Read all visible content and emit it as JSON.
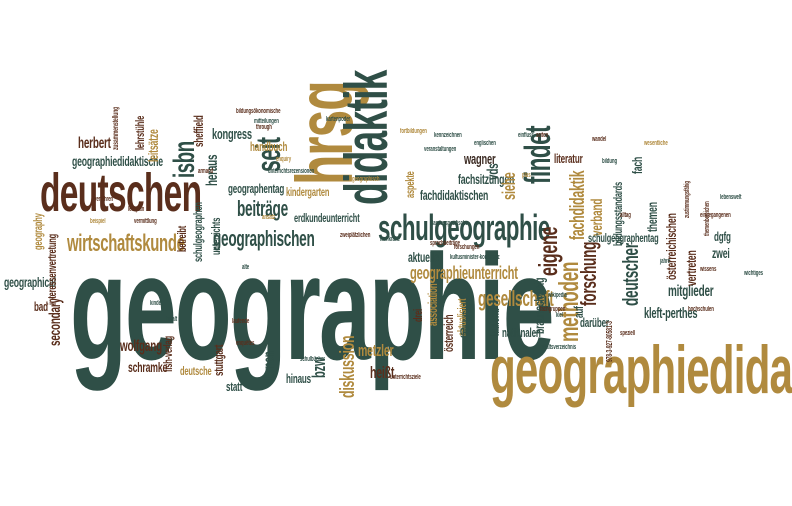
{
  "colors": {
    "green": "#2f4f47",
    "brown": "#5a2e1c",
    "gold": "#b08a3e",
    "tan": "#c9a25c",
    "olive": "#7a7a3a",
    "dark": "#3b2a22"
  },
  "words": [
    {
      "text": "geographie",
      "color": "green",
      "orientation": "horizontal"
    },
    {
      "text": "geographiedidaktik",
      "color": "gold",
      "orientation": "horizontal"
    },
    {
      "text": "deutschen",
      "color": "brown",
      "orientation": "horizontal"
    },
    {
      "text": "hrsg",
      "color": "gold",
      "orientation": "vertical"
    },
    {
      "text": "didaktik",
      "color": "green",
      "orientation": "vertical"
    },
    {
      "text": "schulgeographie",
      "color": "green",
      "orientation": "horizontal"
    },
    {
      "text": "findet",
      "color": "green",
      "orientation": "vertical"
    },
    {
      "text": "wirtschaftskunde",
      "color": "gold",
      "orientation": "horizontal"
    },
    {
      "text": "methoden",
      "color": "gold",
      "orientation": "vertical"
    },
    {
      "text": "isbn",
      "color": "green",
      "orientation": "vertical"
    },
    {
      "text": "seit",
      "color": "green",
      "orientation": "vertical"
    },
    {
      "text": "eigene",
      "color": "brown",
      "orientation": "vertical"
    },
    {
      "text": "geographischen",
      "color": "green",
      "orientation": "horizontal"
    },
    {
      "text": "beiträge",
      "color": "green",
      "orientation": "horizontal"
    },
    {
      "text": "gesellschaft",
      "color": "gold",
      "orientation": "horizontal"
    },
    {
      "text": "geographieunterricht",
      "color": "gold",
      "orientation": "horizontal"
    },
    {
      "text": "fachdidaktik",
      "color": "gold",
      "orientation": "vertical"
    },
    {
      "text": "forschung",
      "color": "brown",
      "orientation": "vertical"
    },
    {
      "text": "deutscher",
      "color": "green",
      "orientation": "vertical"
    },
    {
      "text": "mitglieder",
      "color": "green",
      "orientation": "horizontal"
    },
    {
      "text": "kleft-perthes",
      "color": "green",
      "orientation": "horizontal"
    },
    {
      "text": "diskussion",
      "color": "gold",
      "orientation": "vertical"
    },
    {
      "text": "metzler",
      "color": "gold",
      "orientation": "horizontal"
    },
    {
      "text": "heißt",
      "color": "brown",
      "orientation": "horizontal"
    },
    {
      "text": "wolfgang",
      "color": "brown",
      "orientation": "horizontal"
    },
    {
      "text": "schramke",
      "color": "brown",
      "orientation": "horizontal"
    },
    {
      "text": "secondary",
      "color": "brown",
      "orientation": "vertical"
    },
    {
      "text": "geographical",
      "color": "green",
      "orientation": "horizontal"
    },
    {
      "text": "bad",
      "color": "brown",
      "orientation": "horizontal"
    },
    {
      "text": "herbert",
      "color": "brown",
      "orientation": "horizontal"
    },
    {
      "text": "geographiedidaktische",
      "color": "green",
      "orientation": "horizontal"
    },
    {
      "text": "leitsätze",
      "color": "gold",
      "orientation": "vertical"
    },
    {
      "text": "kongress",
      "color": "green",
      "orientation": "horizontal"
    },
    {
      "text": "handbuch",
      "color": "gold",
      "orientation": "horizontal"
    },
    {
      "text": "heraus",
      "color": "green",
      "orientation": "vertical"
    },
    {
      "text": "sheffield",
      "color": "brown",
      "orientation": "vertical"
    },
    {
      "text": "unterrichts",
      "color": "green",
      "orientation": "vertical"
    },
    {
      "text": "geographentag",
      "color": "green",
      "orientation": "horizontal"
    },
    {
      "text": "kindergarten",
      "color": "gold",
      "orientation": "horizontal"
    },
    {
      "text": "erdkundeunterricht",
      "color": "green",
      "orientation": "horizontal"
    },
    {
      "text": "wagner",
      "color": "dark",
      "orientation": "horizontal"
    },
    {
      "text": "vds",
      "color": "green",
      "orientation": "vertical"
    },
    {
      "text": "fachsitzungen",
      "color": "green",
      "orientation": "horizontal"
    },
    {
      "text": "fachdidaktischen",
      "color": "green",
      "orientation": "horizontal"
    },
    {
      "text": "aspekte",
      "color": "gold",
      "orientation": "vertical"
    },
    {
      "text": "siehe",
      "color": "gold",
      "orientation": "vertical"
    },
    {
      "text": "literatur",
      "color": "brown",
      "orientation": "horizontal"
    },
    {
      "text": "fach",
      "color": "green",
      "orientation": "vertical"
    },
    {
      "text": "verband",
      "color": "gold",
      "orientation": "vertical"
    },
    {
      "text": "bildungsstandards",
      "color": "green",
      "orientation": "vertical"
    },
    {
      "text": "themen",
      "color": "green",
      "orientation": "vertical"
    },
    {
      "text": "österreichischen",
      "color": "brown",
      "orientation": "vertical"
    },
    {
      "text": "vertreten",
      "color": "brown",
      "orientation": "vertical"
    },
    {
      "text": "zwei",
      "color": "green",
      "orientation": "horizontal"
    },
    {
      "text": "dgfg",
      "color": "green",
      "orientation": "horizontal"
    },
    {
      "text": "schulgeographentag",
      "color": "green",
      "orientation": "horizontal"
    },
    {
      "text": "darüber",
      "color": "green",
      "orientation": "horizontal"
    },
    {
      "text": "aktuelle",
      "color": "green",
      "orientation": "horizontal"
    },
    {
      "text": "association",
      "color": "gold",
      "orientation": "vertical"
    },
    {
      "text": "österreich",
      "color": "brown",
      "orientation": "vertical"
    },
    {
      "text": "drei",
      "color": "brown",
      "orientation": "vertical"
    },
    {
      "text": "aktualisiert",
      "color": "gold",
      "orientation": "vertical"
    },
    {
      "text": "didaktische",
      "color": "green",
      "orientation": "vertical"
    },
    {
      "text": "braunschweig",
      "color": "green",
      "orientation": "vertical"
    },
    {
      "text": "nationalen",
      "color": "green",
      "orientation": "horizontal"
    },
    {
      "text": "laufend",
      "color": "green",
      "orientation": "vertical"
    },
    {
      "text": "gibt",
      "color": "green",
      "orientation": "horizontal"
    },
    {
      "text": "auf",
      "color": "green",
      "orientation": "vertical"
    },
    {
      "text": "lernen",
      "color": "green",
      "orientation": "vertical"
    },
    {
      "text": "bzw",
      "color": "green",
      "orientation": "vertical"
    },
    {
      "text": "stuttgart",
      "color": "brown",
      "orientation": "vertical"
    },
    {
      "text": "statt",
      "color": "green",
      "orientation": "horizontal"
    },
    {
      "text": "hinaus",
      "color": "green",
      "orientation": "horizontal"
    },
    {
      "text": "deutsche",
      "color": "gold",
      "orientation": "horizontal"
    },
    {
      "text": "fish-verlag",
      "color": "brown",
      "orientation": "vertical"
    },
    {
      "text": "geography",
      "color": "gold",
      "orientation": "vertical"
    },
    {
      "text": "interessenvertretung",
      "color": "brown",
      "orientation": "vertical"
    },
    {
      "text": "betreibt",
      "color": "brown",
      "orientation": "vertical"
    },
    {
      "text": "schulgeographen",
      "color": "green",
      "orientation": "vertical"
    },
    {
      "text": "zusammenstellung",
      "color": "brown",
      "orientation": "vertical"
    },
    {
      "text": "lehrstühle",
      "color": "brown",
      "orientation": "vertical"
    },
    {
      "text": "bildungsökonomische",
      "color": "brown",
      "orientation": "horizontal"
    },
    {
      "text": "kultusminister-konferenz",
      "color": "green",
      "orientation": "horizontal"
    },
    {
      "text": "veranstaltungen",
      "color": "green",
      "orientation": "horizontal"
    },
    {
      "text": "fortbildungen",
      "color": "gold",
      "orientation": "horizontal"
    },
    {
      "text": "englischen",
      "color": "green",
      "orientation": "horizontal"
    },
    {
      "text": "forschungen",
      "color": "brown",
      "orientation": "horizontal"
    },
    {
      "text": "einfluss",
      "color": "green",
      "orientation": "horizontal"
    },
    {
      "text": "seiten",
      "color": "brown",
      "orientation": "horizontal"
    },
    {
      "text": "armand",
      "color": "brown",
      "orientation": "horizontal"
    },
    {
      "text": "beispiel",
      "color": "gold",
      "orientation": "horizontal"
    },
    {
      "text": "vermittlung",
      "color": "brown",
      "orientation": "horizontal"
    },
    {
      "text": "kartenpoder",
      "color": "green",
      "orientation": "horizontal"
    },
    {
      "text": "zweiplätzlichen",
      "color": "brown",
      "orientation": "horizontal"
    },
    {
      "text": "kennzeichnen",
      "color": "green",
      "orientation": "horizontal"
    },
    {
      "text": "landesspezifische",
      "color": "green",
      "orientation": "horizontal"
    },
    {
      "text": "fachgruppen",
      "color": "brown",
      "orientation": "horizontal"
    },
    {
      "text": "inhaltsverzeichnis",
      "color": "green",
      "orientation": "horizontal"
    },
    {
      "text": "unterrichtsrezensionen",
      "color": "green",
      "orientation": "horizontal"
    },
    {
      "text": "978-3-927-80581-3",
      "color": "brown",
      "orientation": "vertical"
    },
    {
      "text": "wikipedia",
      "color": "green",
      "orientation": "horizontal"
    },
    {
      "text": "sprachbeiträge",
      "color": "brown",
      "orientation": "horizontal"
    },
    {
      "text": "zustimmungsfähig",
      "color": "brown",
      "orientation": "vertical"
    },
    {
      "text": "themenbereichen",
      "color": "brown",
      "orientation": "vertical"
    },
    {
      "text": "kinder",
      "color": "green",
      "orientation": "horizontal"
    },
    {
      "text": "verfahren",
      "color": "brown",
      "orientation": "horizontal"
    },
    {
      "text": "geographisch",
      "color": "gold",
      "orientation": "horizontal"
    },
    {
      "text": "ansatz",
      "color": "gold",
      "orientation": "horizontal"
    },
    {
      "text": "bildung",
      "color": "green",
      "orientation": "horizontal"
    },
    {
      "text": "enquêtes",
      "color": "brown",
      "orientation": "horizontal"
    },
    {
      "text": "wissens",
      "color": "brown",
      "orientation": "horizontal"
    },
    {
      "text": "mitteilungen",
      "color": "green",
      "orientation": "horizontal"
    },
    {
      "text": "enquiry",
      "color": "gold",
      "orientation": "horizontal"
    },
    {
      "text": "through",
      "color": "brown",
      "orientation": "horizontal"
    },
    {
      "text": "unterrichtsziele",
      "color": "brown",
      "orientation": "horizontal"
    },
    {
      "text": "schulbücher",
      "color": "green",
      "orientation": "horizontal"
    },
    {
      "text": "laufende",
      "color": "brown",
      "orientation": "horizontal"
    },
    {
      "text": "alte",
      "color": "green",
      "orientation": "horizontal"
    },
    {
      "text": "kiel",
      "color": "green",
      "orientation": "horizontal"
    },
    {
      "text": "hochschulen",
      "color": "brown",
      "orientation": "horizontal"
    },
    {
      "text": "plus",
      "color": "gold",
      "orientation": "horizontal"
    },
    {
      "text": "alltag",
      "color": "brown",
      "orientation": "horizontal"
    },
    {
      "text": "fachkräfte",
      "color": "green",
      "orientation": "horizontal"
    },
    {
      "text": "wandel",
      "color": "brown",
      "orientation": "horizontal"
    },
    {
      "text": "jahre",
      "color": "green",
      "orientation": "horizontal"
    },
    {
      "text": "speziell",
      "color": "brown",
      "orientation": "horizontal"
    },
    {
      "text": "inhalt",
      "color": "green",
      "orientation": "horizontal"
    },
    {
      "text": "wesentliche",
      "color": "gold",
      "orientation": "horizontal"
    },
    {
      "text": "lehrplan",
      "color": "brown",
      "orientation": "horizontal"
    },
    {
      "text": "wichtiges",
      "color": "green",
      "orientation": "horizontal"
    },
    {
      "text": "lebenswelt",
      "color": "green",
      "orientation": "horizontal"
    },
    {
      "text": "eingegangenen",
      "color": "brown",
      "orientation": "horizontal"
    }
  ]
}
